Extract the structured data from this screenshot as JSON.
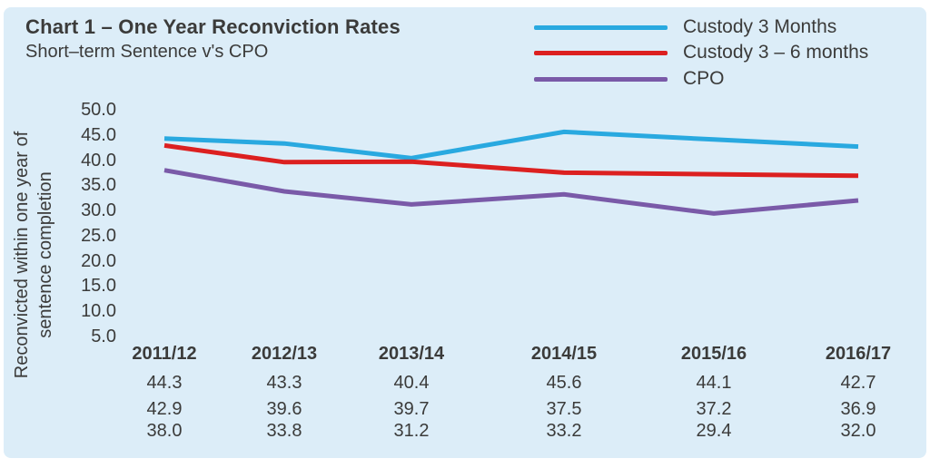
{
  "chart": {
    "title": "Chart 1 – One Year Reconviction Rates",
    "subtitle": "Short–term Sentence v's CPO",
    "y_axis_label": [
      "Reconvicted within one year of",
      "sentence completion"
    ]
  },
  "colors": {
    "page_background": "#FFFFFF",
    "panel_background": "#DCEDF8",
    "text": "#3B3B3A",
    "custody_3_months_line": "#29A9E0",
    "custody_3_6_months_line": "#DC2020",
    "cpo_line": "#7A5AA8"
  },
  "chart_data": {
    "type": "line",
    "title": "Chart 1 – One Year Reconviction Rates",
    "subtitle": "Short–term Sentence v's CPO",
    "ylabel": "Reconvicted within one year of sentence completion",
    "xlabel": "",
    "categories": [
      "2011/12",
      "2012/13",
      "2013/14",
      "2014/15",
      "2015/16",
      "2016/17"
    ],
    "series": [
      {
        "name": "Custody 3 Months",
        "color": "#29A9E0",
        "values": [
          44.3,
          43.3,
          40.4,
          45.6,
          44.1,
          42.7
        ]
      },
      {
        "name": "Custody 3 – 6 months",
        "color": "#DC2020",
        "values": [
          42.9,
          39.6,
          39.7,
          37.5,
          37.2,
          36.9
        ]
      },
      {
        "name": "CPO",
        "color": "#7A5AA8",
        "values": [
          38.0,
          33.8,
          31.2,
          33.2,
          29.4,
          32.0
        ]
      }
    ],
    "y_ticks": [
      50.0,
      45.0,
      40.0,
      35.0,
      30.0,
      25.0,
      20.0,
      15.0,
      10.0,
      5.0
    ],
    "ylim": [
      5.0,
      50.0
    ],
    "grid": false,
    "legend_position": "top-right",
    "values_table_below_axis": true
  }
}
